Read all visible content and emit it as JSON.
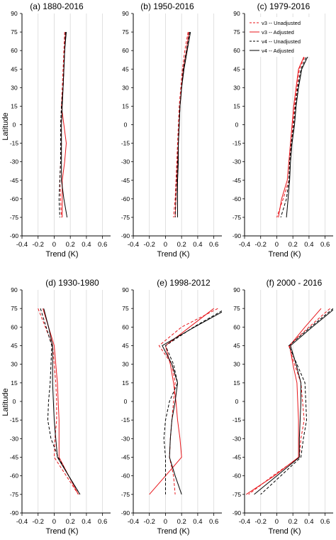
{
  "figure": {
    "ylabel": "Latitude",
    "xlabel": "Trend (K)"
  },
  "colors": {
    "v3": "#e8161b",
    "v4": "#000000",
    "grid": "#d9d9d9"
  },
  "legend": {
    "location": "top-right of panel (c)",
    "entries": [
      "v3 -- Unadjusted",
      "v3 -- Adjusted",
      "v4 -- Unadjusted",
      "v4 -- Adjusted"
    ]
  },
  "chart_data": [
    {
      "type": "line",
      "title": "(a) 1880-2016",
      "xlabel": "Trend (K)",
      "ylabel": "Latitude",
      "xlim": [
        -0.4,
        0.7
      ],
      "ylim": [
        -90,
        90
      ],
      "x_ticks": [
        "-0.4",
        "-0.2",
        "0",
        "0.2",
        "0.4",
        "0.6"
      ],
      "y_ticks": [
        "90",
        "75",
        "60",
        "45",
        "30",
        "15",
        "0",
        "-15",
        "-30",
        "-45",
        "-60",
        "-75",
        "-90"
      ],
      "grid": true,
      "latitudes": [
        75,
        60,
        45,
        30,
        15,
        0,
        -15,
        -30,
        -45,
        -60,
        -75
      ],
      "series": [
        {
          "name": "v3 -- Unadjusted",
          "style": "dashed",
          "color": "#e8161b",
          "values": [
            0.13,
            0.12,
            0.11,
            0.1,
            0.09,
            0.08,
            0.09,
            0.08,
            0.07,
            0.08,
            0.09
          ]
        },
        {
          "name": "v3 -- Adjusted",
          "style": "solid",
          "color": "#e8161b",
          "values": [
            0.14,
            0.13,
            0.12,
            0.11,
            0.09,
            0.12,
            0.15,
            0.13,
            0.1,
            0.1,
            0.1
          ]
        },
        {
          "name": "v4 -- Unadjusted",
          "style": "dashed",
          "color": "#000000",
          "values": [
            0.14,
            0.13,
            0.12,
            0.11,
            0.09,
            0.08,
            0.08,
            0.08,
            0.07,
            0.06,
            0.07
          ]
        },
        {
          "name": "v4 -- Adjusted",
          "style": "solid",
          "color": "#000000",
          "values": [
            0.15,
            0.13,
            0.12,
            0.11,
            0.1,
            0.09,
            0.09,
            0.09,
            0.09,
            0.12,
            0.16
          ]
        }
      ]
    },
    {
      "type": "line",
      "title": "(b) 1950-2016",
      "xlabel": "Trend (K)",
      "xlim": [
        -0.4,
        0.7
      ],
      "ylim": [
        -90,
        90
      ],
      "x_ticks": [
        "-0.4",
        "-0.2",
        "0",
        "0.2",
        "0.4",
        "0.6"
      ],
      "y_ticks": [
        "90",
        "75",
        "60",
        "45",
        "30",
        "15",
        "0",
        "-15",
        "-30",
        "-45",
        "-60",
        "-75",
        "-90"
      ],
      "grid": true,
      "latitudes": [
        75,
        60,
        45,
        30,
        15,
        0,
        -15,
        -30,
        -45,
        -60,
        -75
      ],
      "series": [
        {
          "name": "v3 -- Unadjusted",
          "style": "dashed",
          "color": "#e8161b",
          "values": [
            0.28,
            0.24,
            0.21,
            0.19,
            0.17,
            0.16,
            0.15,
            0.14,
            0.13,
            0.12,
            0.1
          ]
        },
        {
          "name": "v3 -- Adjusted",
          "style": "solid",
          "color": "#e8161b",
          "values": [
            0.29,
            0.26,
            0.22,
            0.2,
            0.18,
            0.17,
            0.16,
            0.15,
            0.14,
            0.13,
            0.12
          ]
        },
        {
          "name": "v4 -- Unadjusted",
          "style": "dashed",
          "color": "#000000",
          "values": [
            0.3,
            0.26,
            0.22,
            0.2,
            0.18,
            0.17,
            0.16,
            0.15,
            0.14,
            0.13,
            0.12
          ]
        },
        {
          "name": "v4 -- Adjusted",
          "style": "solid",
          "color": "#000000",
          "values": [
            0.31,
            0.27,
            0.23,
            0.2,
            0.18,
            0.17,
            0.16,
            0.16,
            0.15,
            0.15,
            0.15
          ]
        }
      ]
    },
    {
      "type": "line",
      "title": "(c) 1979-2016",
      "xlabel": "Trend (K)",
      "xlim": [
        -0.4,
        0.7
      ],
      "ylim": [
        -90,
        90
      ],
      "x_ticks": [
        "-0.4",
        "-0.2",
        "0",
        "0.2",
        "0.4",
        "0.6"
      ],
      "y_ticks": [
        "90",
        "75",
        "60",
        "45",
        "30",
        "15",
        "0",
        "-15",
        "-30",
        "-45",
        "-60",
        "-75",
        "-90"
      ],
      "grid": true,
      "latitudes": [
        75,
        60,
        45,
        30,
        15,
        0,
        -15,
        -30,
        -45,
        -60,
        -75
      ],
      "series": [
        {
          "name": "v3 -- Unadjusted",
          "style": "dashed",
          "color": "#e8161b",
          "values": [
            0.48,
            0.38,
            0.28,
            0.25,
            0.22,
            0.2,
            0.18,
            0.16,
            0.15,
            0.08,
            0.0
          ]
        },
        {
          "name": "v3 -- Adjusted",
          "style": "solid",
          "color": "#e8161b",
          "values": [
            0.46,
            0.37,
            0.27,
            0.24,
            0.21,
            0.19,
            0.17,
            0.15,
            0.13,
            0.06,
            0.02
          ]
        },
        {
          "name": "v4 -- Unadjusted",
          "style": "dashed",
          "color": "#000000",
          "values": [
            0.5,
            0.4,
            0.3,
            0.26,
            0.23,
            0.21,
            0.18,
            0.16,
            0.15,
            0.12,
            0.05
          ]
        },
        {
          "name": "v4 -- Adjusted",
          "style": "solid",
          "color": "#000000",
          "values": [
            0.52,
            0.42,
            0.31,
            0.27,
            0.24,
            0.22,
            0.19,
            0.17,
            0.16,
            0.14,
            0.12
          ]
        }
      ]
    },
    {
      "type": "line",
      "title": "(d) 1930-1980",
      "xlabel": "Trend (K)",
      "ylabel": "Latitude",
      "xlim": [
        -0.4,
        0.7
      ],
      "ylim": [
        -90,
        90
      ],
      "x_ticks": [
        "-0.4",
        "-0.2",
        "0",
        "0.2",
        "0.4",
        "0.6"
      ],
      "y_ticks": [
        "90",
        "75",
        "60",
        "45",
        "30",
        "15",
        "0",
        "-15",
        "-30",
        "-45",
        "-60",
        "-75",
        "-90"
      ],
      "grid": true,
      "latitudes": [
        75,
        60,
        45,
        30,
        15,
        0,
        -15,
        -30,
        -45,
        -60,
        -75
      ],
      "series": [
        {
          "name": "v3 -- Unadjusted",
          "style": "dashed",
          "color": "#e8161b",
          "values": [
            -0.2,
            -0.11,
            -0.02,
            0.0,
            0.02,
            0.03,
            0.03,
            0.01,
            0.0,
            0.15,
            0.3
          ]
        },
        {
          "name": "v3 -- Adjusted",
          "style": "solid",
          "color": "#e8161b",
          "values": [
            -0.14,
            -0.07,
            0.0,
            0.02,
            0.04,
            0.05,
            0.06,
            0.06,
            0.06,
            0.18,
            0.3
          ]
        },
        {
          "name": "v4 -- Unadjusted",
          "style": "dashed",
          "color": "#000000",
          "values": [
            -0.17,
            -0.1,
            -0.03,
            -0.04,
            -0.05,
            -0.07,
            -0.08,
            -0.04,
            0.05,
            0.18,
            0.32
          ]
        },
        {
          "name": "v4 -- Adjusted",
          "style": "solid",
          "color": "#000000",
          "values": [
            -0.13,
            -0.07,
            -0.02,
            -0.02,
            -0.02,
            -0.01,
            0.0,
            0.02,
            0.04,
            0.18,
            0.32
          ]
        }
      ]
    },
    {
      "type": "line",
      "title": "(e) 1998-2012",
      "xlabel": "Trend (K)",
      "xlim": [
        -0.4,
        0.7
      ],
      "ylim": [
        -90,
        90
      ],
      "x_ticks": [
        "-0.4",
        "-0.2",
        "0",
        "0.2",
        "0.4",
        "0.6"
      ],
      "y_ticks": [
        "90",
        "75",
        "60",
        "45",
        "30",
        "15",
        "0",
        "-15",
        "-30",
        "-45",
        "-60",
        "-75",
        "-90"
      ],
      "grid": true,
      "latitudes": [
        75,
        60,
        45,
        30,
        15,
        0,
        -15,
        -30,
        -45,
        -60,
        -75
      ],
      "series": [
        {
          "name": "v3 -- Unadjusted",
          "style": "dashed",
          "color": "#e8161b",
          "values": [
            0.65,
            0.2,
            -0.08,
            0.08,
            0.12,
            0.1,
            0.08,
            0.06,
            0.05,
            0.1,
            0.12
          ]
        },
        {
          "name": "v3 -- Adjusted",
          "style": "solid",
          "color": "#e8161b",
          "values": [
            0.6,
            0.3,
            0.0,
            0.06,
            0.1,
            0.13,
            0.15,
            0.18,
            0.2,
            0.0,
            -0.2
          ]
        },
        {
          "name": "v4 -- Unadjusted",
          "style": "dashed",
          "color": "#000000",
          "values": [
            0.75,
            0.35,
            0.0,
            0.1,
            0.15,
            0.05,
            0.0,
            -0.02,
            0.0,
            0.0,
            0.0
          ]
        },
        {
          "name": "v4 -- Adjusted",
          "style": "solid",
          "color": "#000000",
          "values": [
            0.78,
            0.36,
            -0.04,
            0.08,
            0.15,
            0.12,
            0.08,
            0.06,
            0.05,
            0.12,
            0.2
          ]
        }
      ]
    },
    {
      "type": "line",
      "title": "(f) 2000 - 2016",
      "xlabel": "Trend (K)",
      "xlim": [
        -0.4,
        0.7
      ],
      "ylim": [
        -90,
        90
      ],
      "x_ticks": [
        "-0.4",
        "-0.2",
        "0",
        "0.2",
        "0.4",
        "0.6"
      ],
      "y_ticks": [
        "90",
        "75",
        "60",
        "45",
        "30",
        "15",
        "0",
        "-15",
        "-30",
        "-45",
        "-60",
        "-75",
        "-90"
      ],
      "grid": true,
      "latitudes": [
        75,
        60,
        45,
        30,
        15,
        0,
        -15,
        -30,
        -45,
        -60,
        -75
      ],
      "series": [
        {
          "name": "v3 -- Unadjusted",
          "style": "dashed",
          "color": "#e8161b",
          "values": [
            0.66,
            0.4,
            0.15,
            0.22,
            0.3,
            0.32,
            0.34,
            0.3,
            0.28,
            -0.05,
            -0.35
          ]
        },
        {
          "name": "v3 -- Adjusted",
          "style": "solid",
          "color": "#e8161b",
          "values": [
            0.55,
            0.35,
            0.16,
            0.2,
            0.25,
            0.26,
            0.27,
            0.27,
            0.27,
            -0.03,
            -0.38
          ]
        },
        {
          "name": "v4 -- Unadjusted",
          "style": "dashed",
          "color": "#000000",
          "values": [
            0.7,
            0.42,
            0.15,
            0.25,
            0.35,
            0.36,
            0.37,
            0.33,
            0.3,
            0.05,
            -0.2
          ]
        },
        {
          "name": "v4 -- Adjusted",
          "style": "solid",
          "color": "#000000",
          "values": [
            0.72,
            0.44,
            0.17,
            0.24,
            0.3,
            0.3,
            0.29,
            0.28,
            0.28,
            0.0,
            -0.28
          ]
        }
      ]
    }
  ]
}
